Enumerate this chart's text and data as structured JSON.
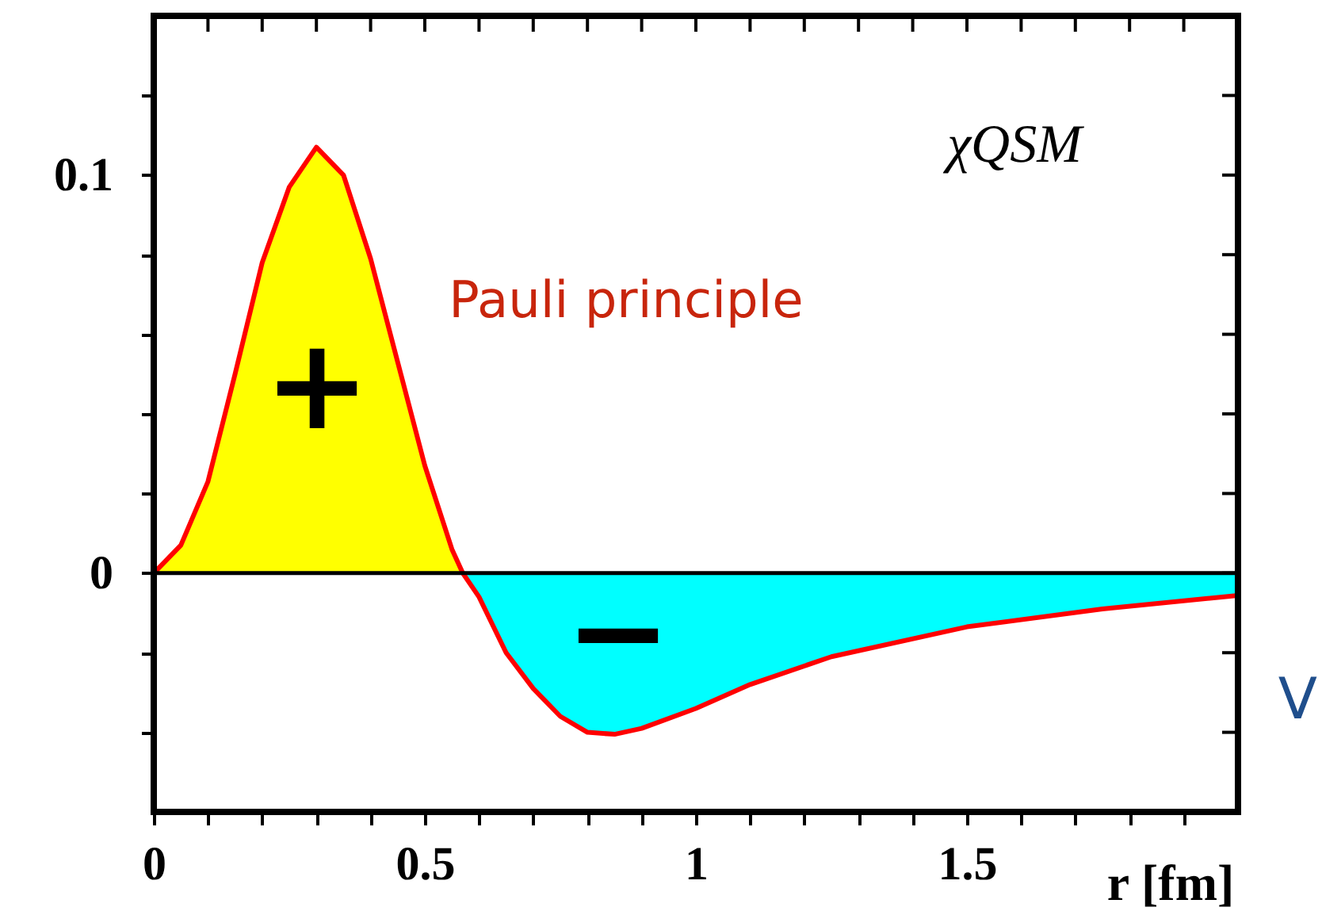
{
  "chart_data": {
    "type": "area",
    "xlabel": "r [fm]",
    "xlim": [
      0,
      2
    ],
    "ylim": [
      -0.06,
      0.14
    ],
    "xticks": [
      0,
      {
        "value": 0.1,
        "label": null
      },
      {
        "value": 0.2,
        "label": null
      },
      {
        "value": 0.3,
        "label": null
      },
      {
        "value": 0.4,
        "label": null
      },
      0.5,
      {
        "value": 0.6,
        "label": null
      },
      {
        "value": 0.7,
        "label": null
      },
      {
        "value": 0.8,
        "label": null
      },
      {
        "value": 0.9,
        "label": null
      },
      1,
      {
        "value": 1.1,
        "label": null
      },
      {
        "value": 1.2,
        "label": null
      },
      {
        "value": 1.3,
        "label": null
      },
      {
        "value": 1.4,
        "label": null
      },
      1.5,
      {
        "value": 1.6,
        "label": null
      },
      {
        "value": 1.7,
        "label": null
      },
      {
        "value": 1.8,
        "label": null
      },
      {
        "value": 1.9,
        "label": null
      }
    ],
    "yticks": [
      {
        "value": -0.04,
        "label": null
      },
      {
        "value": -0.02,
        "label": null
      },
      0,
      {
        "value": 0.02,
        "label": null
      },
      {
        "value": 0.04,
        "label": null
      },
      {
        "value": 0.06,
        "label": null
      },
      {
        "value": 0.08,
        "label": null
      },
      0.1,
      {
        "value": 0.12,
        "label": null
      }
    ],
    "series": [
      {
        "type": "area",
        "color": "#ffff00",
        "x": [
          0,
          0.05,
          0.1,
          0.15,
          0.2,
          0.25,
          0.3,
          0.35,
          0.4,
          0.45,
          0.5,
          0.55,
          0.57
        ],
        "values": [
          0,
          0.007,
          0.023,
          0.05,
          0.078,
          0.097,
          0.107,
          0.1,
          0.079,
          0.053,
          0.027,
          0.006,
          0
        ]
      },
      {
        "type": "area",
        "color": "#00ffff",
        "x": [
          0.57,
          0.6,
          0.65,
          0.7,
          0.75,
          0.8,
          0.85,
          0.9,
          1.0,
          1.1,
          1.25,
          1.5,
          1.75,
          2.0
        ],
        "values": [
          0,
          -0.006,
          -0.02,
          -0.029,
          -0.036,
          -0.04,
          -0.0405,
          -0.039,
          -0.034,
          -0.028,
          -0.021,
          -0.0135,
          -0.009,
          -0.0056
        ]
      },
      {
        "type": "line",
        "color": "#ff0000",
        "x": [
          0,
          0.05,
          0.1,
          0.15,
          0.2,
          0.25,
          0.3,
          0.35,
          0.4,
          0.45,
          0.5,
          0.55,
          0.57,
          0.6,
          0.65,
          0.7,
          0.75,
          0.8,
          0.85,
          0.9,
          1.0,
          1.1,
          1.25,
          1.5,
          1.75,
          2.0
        ],
        "values": [
          0,
          0.007,
          0.023,
          0.05,
          0.078,
          0.097,
          0.107,
          0.1,
          0.079,
          0.053,
          0.027,
          0.006,
          0,
          -0.006,
          -0.02,
          -0.029,
          -0.036,
          -0.04,
          -0.0405,
          -0.039,
          -0.034,
          -0.028,
          -0.021,
          -0.0135,
          -0.009,
          -0.0056
        ]
      }
    ],
    "ref_lines": [
      {
        "axis": "y",
        "value": 0,
        "color": "#000000"
      }
    ],
    "annotations": [
      "χQSM",
      "Pauli principle",
      "+",
      "−",
      "V"
    ],
    "grid": false,
    "legend": false
  }
}
